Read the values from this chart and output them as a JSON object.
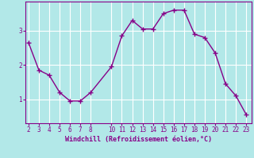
{
  "x": [
    2,
    3,
    4,
    5,
    6,
    7,
    8,
    10,
    11,
    12,
    13,
    14,
    15,
    16,
    17,
    18,
    19,
    20,
    21,
    22,
    23
  ],
  "y": [
    2.65,
    1.85,
    1.7,
    1.2,
    0.95,
    0.95,
    1.2,
    1.95,
    2.85,
    3.3,
    3.05,
    3.05,
    3.5,
    3.6,
    3.6,
    2.9,
    2.8,
    2.35,
    1.45,
    1.1,
    0.55
  ],
  "line_color": "#880088",
  "marker": "+",
  "marker_size": 4,
  "bg_color": "#b2e8e8",
  "grid_color": "#ffffff",
  "xlabel": "Windchill (Refroidissement éolien,°C)",
  "xlabel_color": "#880088",
  "tick_color": "#880088",
  "ylim": [
    0.3,
    3.85
  ],
  "yticks": [
    1,
    2,
    3
  ],
  "xlim": [
    1.7,
    23.5
  ],
  "xticks": [
    2,
    3,
    4,
    5,
    6,
    7,
    8,
    10,
    11,
    12,
    13,
    14,
    15,
    16,
    17,
    18,
    19,
    20,
    21,
    22,
    23
  ],
  "spine_color": "#880088",
  "linewidth": 1.0,
  "tick_fontsize": 5.5,
  "xlabel_fontsize": 6.0
}
